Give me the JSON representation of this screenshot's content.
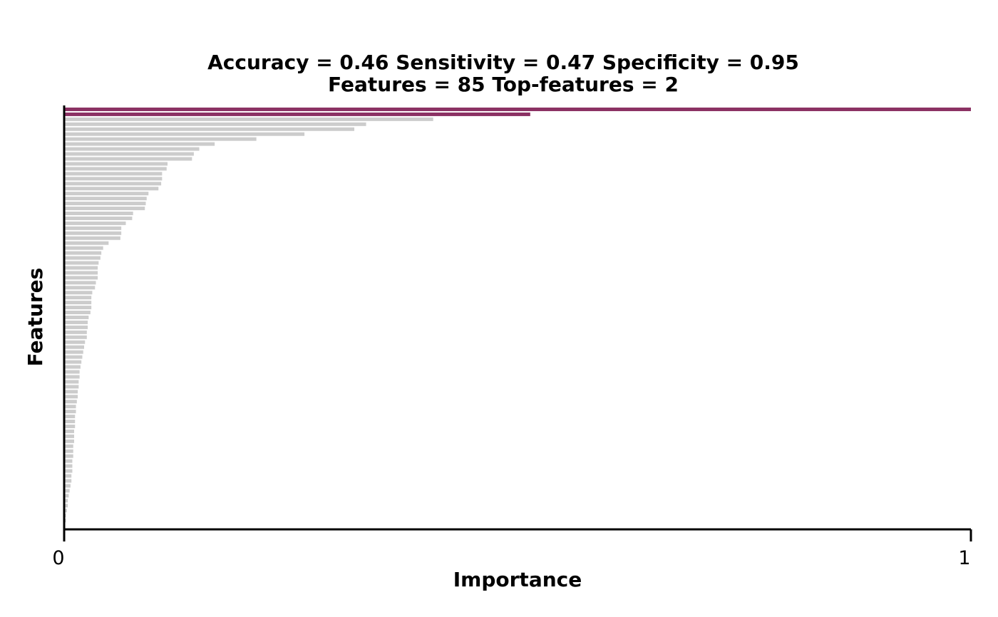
{
  "chart_data": {
    "type": "bar",
    "orientation": "horizontal",
    "title_lines": [
      "Accuracy = 0.46    Sensitivity = 0.47    Specificity = 0.95",
      "Features = 85    Top-features = 2"
    ],
    "xlabel": "Importance",
    "ylabel": "Features",
    "xlim": [
      0,
      1
    ],
    "x_ticks": [
      "0",
      "1"
    ],
    "grid": false,
    "colors": {
      "top_feature": "#8b3163",
      "other_feature": "#cccccc",
      "axis": "#000000"
    },
    "top_feature_count": 2,
    "values": [
      1.0,
      0.514,
      0.407,
      0.333,
      0.32,
      0.265,
      0.212,
      0.166,
      0.149,
      0.143,
      0.141,
      0.114,
      0.113,
      0.108,
      0.108,
      0.107,
      0.104,
      0.093,
      0.091,
      0.09,
      0.089,
      0.076,
      0.075,
      0.068,
      0.063,
      0.063,
      0.062,
      0.049,
      0.043,
      0.041,
      0.04,
      0.038,
      0.037,
      0.037,
      0.037,
      0.035,
      0.034,
      0.031,
      0.03,
      0.03,
      0.03,
      0.029,
      0.027,
      0.026,
      0.026,
      0.025,
      0.025,
      0.023,
      0.022,
      0.021,
      0.02,
      0.019,
      0.018,
      0.017,
      0.017,
      0.016,
      0.016,
      0.015,
      0.015,
      0.014,
      0.013,
      0.013,
      0.012,
      0.012,
      0.012,
      0.011,
      0.011,
      0.011,
      0.01,
      0.01,
      0.01,
      0.009,
      0.009,
      0.009,
      0.008,
      0.008,
      0.007,
      0.006,
      0.005,
      0.004,
      0.004,
      0.003,
      0.002,
      0.002,
      0.001
    ]
  }
}
